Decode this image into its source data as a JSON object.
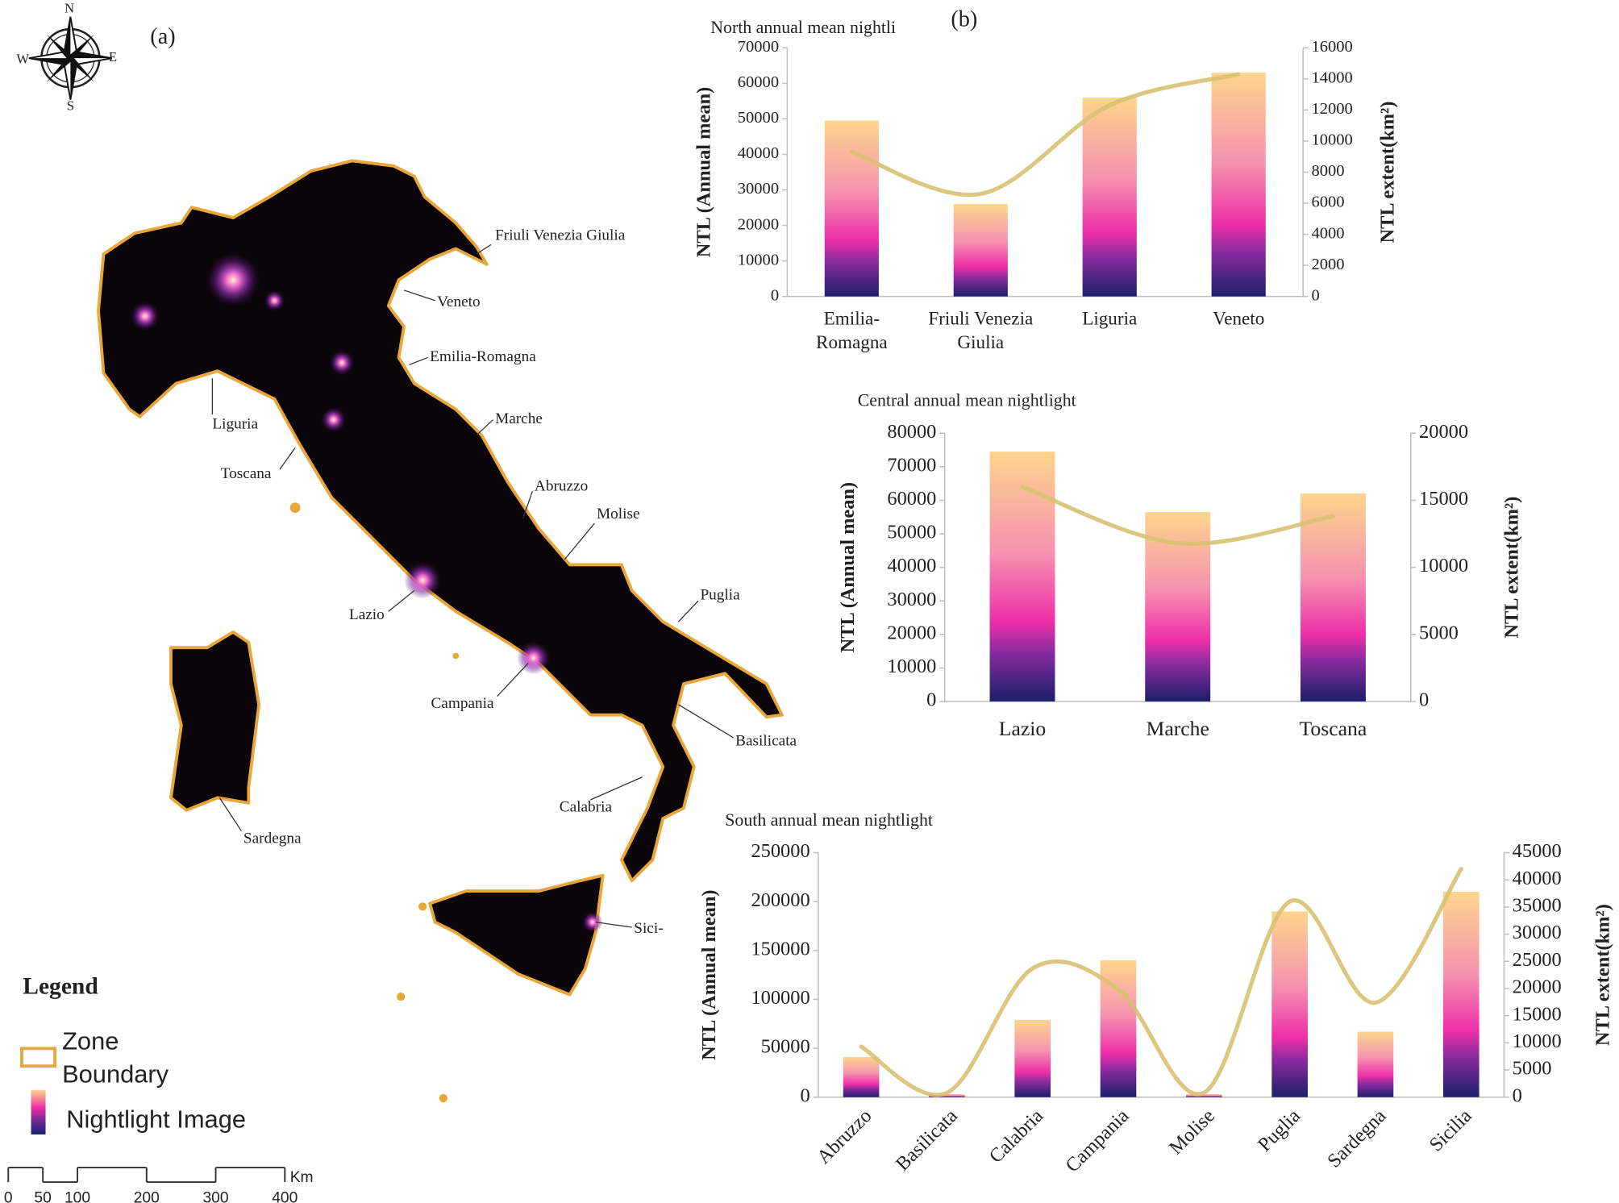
{
  "map": {
    "panel_label": "(a)",
    "compass": {
      "n": "N",
      "s": "S",
      "w": "W",
      "e": "E"
    },
    "regions": [
      "Friuli Venezia Giulia",
      "Veneto",
      "Emilia-Romagna",
      "Marche",
      "Abruzzo",
      "Molise",
      "Puglia",
      "Basilicata",
      "Calabria",
      "Sici-",
      "Sardegna",
      "Campania",
      "Lazio",
      "Toscana",
      "Liguria"
    ],
    "legend": {
      "title": "Legend",
      "items": [
        "Zone Boundary",
        "Nightlight Image"
      ]
    },
    "scale_bar": {
      "ticks": [
        0,
        50,
        100,
        200,
        300,
        400
      ],
      "unit": "Km"
    }
  },
  "charts_panel_label": "(b)",
  "chart_data": [
    {
      "type": "bar",
      "title": "North annual mean nightli",
      "ylabel": "NTL (Annual mean)",
      "y2label": "NTL extent(km²)",
      "categories": [
        "Emilia-Romagna",
        "Friuli Venezia Giulia",
        "Liguria",
        "Veneto"
      ],
      "series": [
        {
          "color": "gradient",
          "values": [
            49500,
            26000,
            56000,
            63000
          ]
        },
        {
          "type": "line",
          "axis": "y2",
          "color": "#d8c172",
          "values": [
            9300,
            6600,
            12300,
            14300
          ]
        }
      ],
      "ylim": [
        0,
        70000
      ],
      "yticks": [
        0,
        10000,
        20000,
        30000,
        40000,
        50000,
        60000,
        70000
      ],
      "y2lim": [
        0,
        16000
      ],
      "y2ticks": [
        0,
        2000,
        4000,
        6000,
        8000,
        10000,
        12000,
        14000,
        16000
      ]
    },
    {
      "type": "bar",
      "title": "Central annual mean nightlight",
      "ylabel": "NTL (Annual mean)",
      "y2label": "NTL extent(km²)",
      "categories": [
        "Lazio",
        "Marche",
        "Toscana"
      ],
      "series": [
        {
          "color": "gradient",
          "values": [
            74500,
            56500,
            62000
          ]
        },
        {
          "type": "line",
          "axis": "y2",
          "color": "#d8c172",
          "values": [
            16000,
            11800,
            13800
          ]
        }
      ],
      "ylim": [
        0,
        80000
      ],
      "yticks": [
        0,
        10000,
        20000,
        30000,
        40000,
        50000,
        60000,
        70000,
        80000
      ],
      "y2lim": [
        0,
        20000
      ],
      "y2ticks": [
        0,
        5000,
        10000,
        15000,
        20000
      ]
    },
    {
      "type": "bar",
      "title": "South annual mean nightlight",
      "ylabel": "NTL (Annual mean)",
      "y2label": "NTL extent(km²)",
      "categories": [
        "Abruzzo",
        "Basilicata",
        "Calabria",
        "Campania",
        "Molise",
        "Puglia",
        "Sardegna",
        "Sicilia"
      ],
      "series": [
        {
          "color": "gradient",
          "values": [
            41000,
            3000,
            79000,
            140000,
            3000,
            190000,
            67000,
            210000
          ]
        },
        {
          "type": "line",
          "axis": "y2",
          "color": "#d8c172",
          "values": [
            9300,
            800,
            23700,
            19800,
            800,
            36000,
            17400,
            42000
          ]
        }
      ],
      "ylim": [
        0,
        250000
      ],
      "yticks": [
        0,
        50000,
        100000,
        150000,
        200000,
        250000
      ],
      "y2lim": [
        0,
        45000
      ],
      "y2ticks": [
        0,
        5000,
        10000,
        15000,
        20000,
        25000,
        30000,
        35000,
        40000,
        45000
      ]
    }
  ]
}
